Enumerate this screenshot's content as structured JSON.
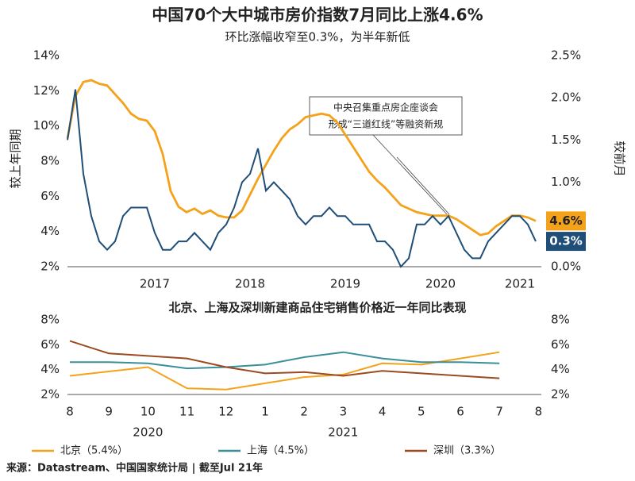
{
  "chart_data": [
    {
      "type": "line",
      "title": "中国70个大中城市房价指数7月同比上涨4.6%",
      "subtitle": "环比涨幅收窄至0.3%，为半年新低",
      "ylabel": "较上年同期",
      "y2label": "较前月",
      "annotation": [
        "中央召集重点房企座谈会",
        "形成“三道红线”等融资新规"
      ],
      "categories": [
        null,
        null,
        null,
        null,
        null,
        null,
        null,
        null,
        null,
        null,
        null,
        "2017",
        null,
        null,
        null,
        null,
        null,
        null,
        null,
        null,
        null,
        null,
        null,
        "2018",
        null,
        null,
        null,
        null,
        null,
        null,
        null,
        null,
        null,
        null,
        null,
        "2019",
        null,
        null,
        null,
        null,
        null,
        null,
        null,
        null,
        null,
        null,
        null,
        "2020",
        null,
        null,
        null,
        null,
        null,
        null,
        null,
        null,
        null,
        "2021",
        null,
        null
      ],
      "ylim": [
        2,
        14
      ],
      "yticks": [
        {
          "value": 2,
          "label": "2%"
        },
        {
          "value": 4,
          "label": "4%"
        },
        {
          "value": 6,
          "label": "6%"
        },
        {
          "value": 8,
          "label": "8%"
        },
        {
          "value": 10,
          "label": "10%"
        },
        {
          "value": 12,
          "label": "12%"
        },
        {
          "value": 14,
          "label": "14%"
        }
      ],
      "y2lim": [
        0,
        2.5
      ],
      "y2ticks": [
        {
          "value": 0,
          "label": "0.0%"
        },
        {
          "value": 0.5,
          "label": "0.5%"
        },
        {
          "value": 1,
          "label": "1.0%"
        },
        {
          "value": 1.5,
          "label": "1.5%"
        },
        {
          "value": 2,
          "label": "2.0%"
        },
        {
          "value": 2.5,
          "label": "2.5%"
        }
      ],
      "grid": false,
      "series": [
        {
          "color": "#f5a21b",
          "axis": "y",
          "values": [
            9.3,
            11.7,
            12.5,
            12.6,
            12.4,
            12.3,
            11.8,
            11.3,
            10.7,
            10.4,
            10.3,
            9.7,
            8.4,
            6.3,
            5.4,
            5.1,
            5.3,
            5.0,
            5.2,
            4.9,
            4.8,
            4.8,
            5.2,
            6.1,
            7.0,
            7.8,
            8.6,
            9.3,
            9.8,
            10.1,
            10.5,
            10.6,
            10.7,
            10.6,
            10.2,
            9.5,
            8.8,
            8.1,
            7.4,
            6.9,
            6.5,
            6.0,
            5.5,
            5.3,
            5.1,
            5.0,
            4.9,
            4.9,
            4.9,
            4.7,
            4.4,
            4.1,
            3.8,
            3.9,
            4.3,
            4.6,
            4.9,
            4.9,
            4.8,
            4.6
          ],
          "value_labels": [
            null,
            null,
            null,
            null,
            null,
            null,
            null,
            null,
            null,
            null,
            null,
            null,
            null,
            null,
            null,
            null,
            null,
            null,
            null,
            null,
            null,
            null,
            null,
            null,
            null,
            null,
            null,
            null,
            null,
            null,
            null,
            null,
            null,
            null,
            null,
            null,
            null,
            null,
            null,
            null,
            null,
            null,
            null,
            null,
            null,
            null,
            null,
            null,
            null,
            null,
            null,
            null,
            null,
            null,
            null,
            null,
            null,
            null,
            null,
            "4.6%"
          ]
        },
        {
          "color": "#1f4e79",
          "axis": "y2",
          "values": [
            1.5,
            2.1,
            1.1,
            0.6,
            0.3,
            0.2,
            0.3,
            0.6,
            0.7,
            0.7,
            0.7,
            0.4,
            0.2,
            0.2,
            0.3,
            0.3,
            0.4,
            0.3,
            0.2,
            0.4,
            0.5,
            0.7,
            1.0,
            1.1,
            1.4,
            0.9,
            1.0,
            0.9,
            0.8,
            0.6,
            0.5,
            0.6,
            0.6,
            0.7,
            0.6,
            0.6,
            0.5,
            0.5,
            0.5,
            0.3,
            0.3,
            0.2,
            0.0,
            0.1,
            0.5,
            0.5,
            0.6,
            0.5,
            0.6,
            0.4,
            0.2,
            0.1,
            0.1,
            0.3,
            0.4,
            0.5,
            0.6,
            0.6,
            0.5,
            0.3
          ],
          "value_labels": [
            null,
            null,
            null,
            null,
            null,
            null,
            null,
            null,
            null,
            null,
            null,
            null,
            null,
            null,
            null,
            null,
            null,
            null,
            null,
            null,
            null,
            null,
            null,
            null,
            null,
            null,
            null,
            null,
            null,
            null,
            null,
            null,
            null,
            null,
            null,
            null,
            null,
            null,
            null,
            null,
            null,
            null,
            null,
            null,
            null,
            null,
            null,
            null,
            null,
            null,
            null,
            null,
            null,
            null,
            null,
            null,
            null,
            null,
            null,
            "0.3%"
          ]
        }
      ]
    },
    {
      "type": "line",
      "title": "北京、上海及深圳新建商品住宅销售价格近一年同比表现",
      "categories": [
        "8",
        "9",
        "10",
        "11",
        "12",
        "1",
        "2",
        "3",
        "4",
        "5",
        "6",
        "7",
        "8"
      ],
      "x_groups": [
        "2020",
        "2021"
      ],
      "ylim": [
        2,
        8
      ],
      "yticks": [
        {
          "value": 2,
          "label": "2%"
        },
        {
          "value": 4,
          "label": "4%"
        },
        {
          "value": 6,
          "label": "6%"
        },
        {
          "value": 8,
          "label": "8%"
        }
      ],
      "y2lim": [
        2,
        8
      ],
      "y2ticks": [
        {
          "value": 2,
          "label": "2%"
        },
        {
          "value": 4,
          "label": "4%"
        },
        {
          "value": 6,
          "label": "6%"
        },
        {
          "value": 8,
          "label": "8%"
        }
      ],
      "grid": false,
      "legend": "bottom",
      "series": [
        {
          "name": "北京（5.4%）",
          "color": "#f5a21b",
          "values": [
            3.5,
            3.85,
            4.2,
            2.5,
            2.4,
            2.9,
            3.4,
            3.6,
            4.5,
            4.4,
            4.9,
            5.4,
            null
          ]
        },
        {
          "name": "上海（4.5%）",
          "color": "#3a8f98",
          "values": [
            4.6,
            4.6,
            4.5,
            4.1,
            4.2,
            4.4,
            5.0,
            5.4,
            4.9,
            4.6,
            4.6,
            4.5,
            null
          ]
        },
        {
          "name": "深圳（3.3%）",
          "color": "#9c4a22",
          "values": [
            6.3,
            5.3,
            5.1,
            4.9,
            4.2,
            3.7,
            3.8,
            3.5,
            3.9,
            3.7,
            3.5,
            3.3,
            null
          ]
        }
      ]
    }
  ],
  "source": "来源：Datastream、中国国家统计局 | 截至Jul 21年"
}
